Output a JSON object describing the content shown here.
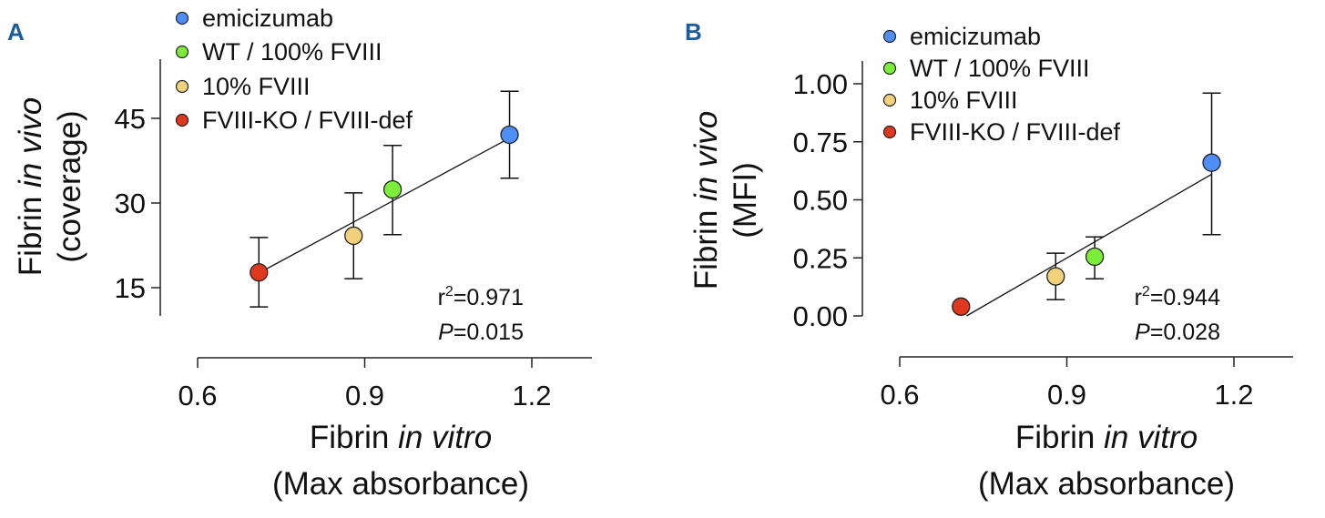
{
  "colors": {
    "emicizumab": "#4f8ef7",
    "wt": "#7cee3a",
    "ten": "#f4d27c",
    "ko": "#e0381c",
    "panel_letter": "#1d5c9c"
  },
  "chart_data": [
    {
      "panel": "A",
      "type": "scatter",
      "xlabel": {
        "prefix": "Fibrin ",
        "italic": "in vitro",
        "line2": "(Max absorbance)"
      },
      "ylabel": {
        "prefix": "Fibrin ",
        "italic": "in vivo",
        "line2": "(coverage)"
      },
      "xlim": [
        0.6,
        1.31
      ],
      "ylim": [
        10,
        55.5
      ],
      "xticks": [
        0.6,
        0.9,
        1.2
      ],
      "xtick_labels": [
        "0.6",
        "0.9",
        "1.2"
      ],
      "yticks": [
        15,
        30,
        45
      ],
      "ytick_labels": [
        "15",
        "30",
        "45"
      ],
      "legend_position": "top-left",
      "series": [
        {
          "name": "emicizumab",
          "color_key": "emicizumab",
          "x": 1.16,
          "y": 42.1,
          "err_low": 34.4,
          "err_high": 49.8
        },
        {
          "name": "WT / 100% FVIII",
          "color_key": "wt",
          "x": 0.95,
          "y": 32.4,
          "err_low": 24.4,
          "err_high": 40.2
        },
        {
          "name": "10% FVIII",
          "color_key": "ten",
          "x": 0.88,
          "y": 24.2,
          "err_low": 16.6,
          "err_high": 31.8
        },
        {
          "name": "FVIII-KO / FVIII-def",
          "color_key": "ko",
          "x": 0.71,
          "y": 17.7,
          "err_low": 11.6,
          "err_high": 23.9
        }
      ],
      "fit_line": {
        "x1": 0.71,
        "y1": 17.6,
        "x2": 1.16,
        "y2": 41.5
      },
      "stats": {
        "r2_label": "r",
        "r2_sup": "2",
        "r2_value": "=0.971",
        "p_label": "P",
        "p_value": "=0.015"
      }
    },
    {
      "panel": "B",
      "type": "scatter",
      "xlabel": {
        "prefix": "Fibrin ",
        "italic": "in vitro",
        "line2": "(Max absorbance)"
      },
      "ylabel": {
        "prefix": "Fibrin ",
        "italic": "in vivo",
        "line2": "(MFI)"
      },
      "xlim": [
        0.6,
        1.31
      ],
      "ylim": [
        0,
        1.1
      ],
      "xticks": [
        0.6,
        0.9,
        1.2
      ],
      "xtick_labels": [
        "0.6",
        "0.9",
        "1.2"
      ],
      "yticks": [
        0,
        0.25,
        0.5,
        0.75,
        1.0
      ],
      "ytick_labels": [
        "0.00",
        "0.25",
        "0.50",
        "0.75",
        "1.00"
      ],
      "legend_position": "top-left",
      "series": [
        {
          "name": "emicizumab",
          "color_key": "emicizumab",
          "x": 1.16,
          "y": 0.66,
          "err_low": 0.35,
          "err_high": 0.96
        },
        {
          "name": "WT / 100% FVIII",
          "color_key": "wt",
          "x": 0.95,
          "y": 0.255,
          "err_low": 0.16,
          "err_high": 0.34
        },
        {
          "name": "10% FVIII",
          "color_key": "ten",
          "x": 0.88,
          "y": 0.17,
          "err_low": 0.07,
          "err_high": 0.27
        },
        {
          "name": "FVIII-KO / FVIII-def",
          "color_key": "ko",
          "x": 0.71,
          "y": 0.04,
          "err_low": null,
          "err_high": null
        }
      ],
      "fit_line": {
        "x1": 0.72,
        "y1": 0.0,
        "x2": 1.16,
        "y2": 0.61
      },
      "stats": {
        "r2_label": "r",
        "r2_sup": "2",
        "r2_value": "=0.944",
        "p_label": "P",
        "p_value": "=0.028"
      }
    }
  ]
}
